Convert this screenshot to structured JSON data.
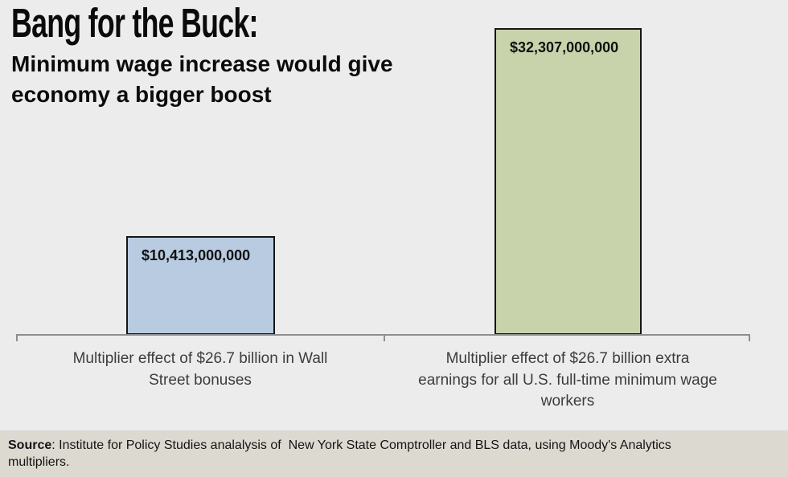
{
  "page": {
    "background": "#ececec"
  },
  "header": {
    "title": "Bang for the Buck:",
    "subtitle_lines": [
      "Minimum wage increase would give",
      "economy a bigger boost"
    ]
  },
  "chart_data": {
    "type": "bar",
    "title": "Bang for the Buck:",
    "subtitle": "Minimum wage increase would give economy a bigger boost",
    "categories": [
      "Multiplier effect of $26.7 billion in Wall Street bonuses",
      "Multiplier effect of $26.7 billion extra earnings for all U.S. full-time minimum wage workers"
    ],
    "values": [
      10413000000,
      32307000000
    ],
    "value_labels": [
      "$10,413,000,000",
      "$32,307,000,000"
    ],
    "bar_colors": [
      "#b8cbe0",
      "#c8d3ab"
    ],
    "bar_border_color": "#151515",
    "axis_color": "#8e8e8e",
    "xlabel": "",
    "ylabel": "",
    "ylim": [
      0,
      32307000000
    ],
    "grid": false,
    "legend": false,
    "value_label_position": "inside-top-left",
    "source": "Source: Institute for Policy Studies analalysis of  New York State Comptroller and BLS data, using Moody's Analytics multipliers."
  },
  "plot": {
    "left_category_lines": [
      "Multiplier effect of $26.7 billion in Wall",
      "Street bonuses"
    ],
    "right_category_lines": [
      "Multiplier effect of $26.7 billion extra",
      "earnings for all U.S. full-time minimum wage",
      "workers"
    ]
  },
  "footer": {
    "background": "#dcd9d1",
    "source_label": "Source",
    "line1_rest": ": Institute for Policy Studies analalysis of  New York State Comptroller and BLS data, using Moody's Analytics",
    "line2": "multipliers."
  }
}
